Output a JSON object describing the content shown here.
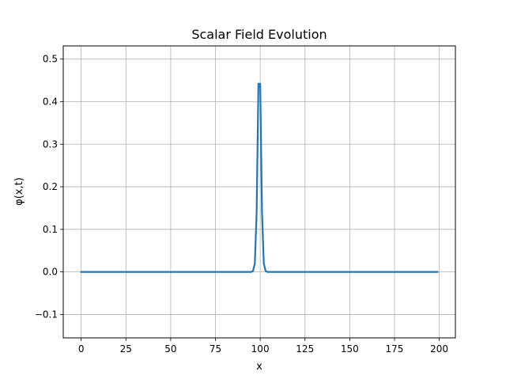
{
  "chart_data": {
    "type": "line",
    "title": "Scalar Field Evolution",
    "xlabel": "x",
    "ylabel": "φ(x,t)",
    "xlim": [
      -10,
      209
    ],
    "ylim": [
      -0.155,
      0.531
    ],
    "grid": true,
    "xticks": [
      0,
      25,
      50,
      75,
      100,
      125,
      150,
      175,
      200
    ],
    "xtick_labels": [
      "0",
      "25",
      "50",
      "75",
      "100",
      "125",
      "150",
      "175",
      "200"
    ],
    "yticks": [
      -0.1,
      0.0,
      0.1,
      0.2,
      0.3,
      0.4,
      0.5
    ],
    "ytick_labels": [
      "−0.1",
      "0.0",
      "0.1",
      "0.2",
      "0.3",
      "0.4",
      "0.5"
    ],
    "series": [
      {
        "color": "#1f77b4",
        "x": [
          0,
          95,
          96,
          97,
          98,
          99,
          100,
          101,
          102,
          103,
          104,
          199
        ],
        "y": [
          0.0,
          0.0,
          0.002,
          0.02,
          0.14,
          0.442,
          0.442,
          0.14,
          0.02,
          0.002,
          0.0,
          0.0
        ]
      }
    ]
  }
}
